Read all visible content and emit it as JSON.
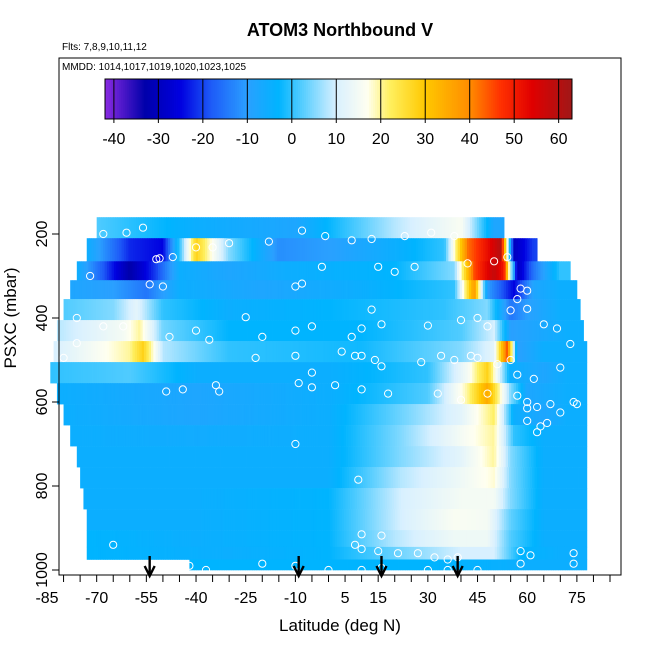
{
  "chart_data": {
    "type": "heatmap",
    "title": "ATOM3 Northbound V",
    "subtitle_flights": "Flts: 7,8,9,10,11,12",
    "subtitle_dates": "MMDD: 1014,1017,1019,1020,1023,1025",
    "xlabel": "Latitude (deg N)",
    "ylabel": "PSXC (mbar)",
    "xlim": [
      -85,
      85
    ],
    "ylim": [
      1000,
      100
    ],
    "x_ticks": [
      -85,
      -70,
      -55,
      -40,
      -25,
      -10,
      5,
      15,
      30,
      45,
      60,
      75
    ],
    "y_ticks": [
      200,
      400,
      600,
      800,
      1000
    ],
    "colorbar": {
      "min": -42,
      "max": 63,
      "ticks": [
        -40,
        -30,
        -20,
        -10,
        0,
        10,
        20,
        30,
        40,
        50,
        60
      ]
    },
    "arrow_markers_lat": [
      -54,
      -9,
      16,
      39
    ],
    "layers": [
      {
        "p_top": 160,
        "p_bot": 210,
        "lat_min": -70,
        "lat_max": 53,
        "stops": [
          [
            -70,
            2
          ],
          [
            -40,
            -5
          ],
          [
            -10,
            -8
          ],
          [
            20,
            8
          ],
          [
            40,
            16
          ],
          [
            50,
            -8
          ]
        ]
      },
      {
        "p_top": 210,
        "p_bot": 265,
        "lat_min": -73,
        "lat_max": 63,
        "stops": [
          [
            -73,
            -5
          ],
          [
            -60,
            -22
          ],
          [
            -50,
            -25
          ],
          [
            -45,
            0
          ],
          [
            -40,
            28
          ],
          [
            -30,
            5
          ],
          [
            -15,
            -12
          ],
          [
            0,
            -10
          ],
          [
            20,
            -5
          ],
          [
            35,
            0
          ],
          [
            42,
            42
          ],
          [
            48,
            52
          ],
          [
            52,
            60
          ],
          [
            56,
            -30
          ],
          [
            62,
            -20
          ]
        ]
      },
      {
        "p_top": 265,
        "p_bot": 310,
        "lat_min": -76,
        "lat_max": 73,
        "stops": [
          [
            -76,
            -5
          ],
          [
            -68,
            -18
          ],
          [
            -60,
            -33
          ],
          [
            -52,
            -20
          ],
          [
            -45,
            -5
          ],
          [
            -30,
            -8
          ],
          [
            -10,
            -5
          ],
          [
            20,
            -3
          ],
          [
            38,
            5
          ],
          [
            44,
            45
          ],
          [
            50,
            58
          ],
          [
            53,
            50
          ],
          [
            57,
            -30
          ],
          [
            62,
            -15
          ],
          [
            70,
            0
          ]
        ]
      },
      {
        "p_top": 310,
        "p_bot": 355,
        "lat_min": -78,
        "lat_max": 75,
        "stops": [
          [
            -78,
            -8
          ],
          [
            -65,
            -10
          ],
          [
            -55,
            -15
          ],
          [
            -45,
            -5
          ],
          [
            -20,
            -8
          ],
          [
            10,
            -5
          ],
          [
            38,
            0
          ],
          [
            44,
            38
          ],
          [
            48,
            -10
          ],
          [
            56,
            -25
          ],
          [
            62,
            -8
          ],
          [
            70,
            -5
          ]
        ]
      },
      {
        "p_top": 355,
        "p_bot": 405,
        "lat_min": -80,
        "lat_max": 76,
        "stops": [
          [
            -80,
            2
          ],
          [
            -65,
            5
          ],
          [
            -58,
            12
          ],
          [
            -50,
            0
          ],
          [
            -30,
            -5
          ],
          [
            0,
            -3
          ],
          [
            35,
            0
          ],
          [
            48,
            5
          ],
          [
            55,
            -15
          ],
          [
            60,
            -10
          ],
          [
            70,
            -5
          ]
        ]
      },
      {
        "p_top": 405,
        "p_bot": 455,
        "lat_min": -82,
        "lat_max": 77,
        "stops": [
          [
            -82,
            8
          ],
          [
            -62,
            15
          ],
          [
            -57,
            20
          ],
          [
            -50,
            4
          ],
          [
            -30,
            -3
          ],
          [
            10,
            -3
          ],
          [
            40,
            2
          ],
          [
            50,
            10
          ],
          [
            55,
            -10
          ],
          [
            62,
            -8
          ],
          [
            72,
            -5
          ]
        ]
      },
      {
        "p_top": 455,
        "p_bot": 505,
        "lat_min": -83,
        "lat_max": 78,
        "stops": [
          [
            -83,
            10
          ],
          [
            -60,
            20
          ],
          [
            -56,
            28
          ],
          [
            -50,
            8
          ],
          [
            -30,
            0
          ],
          [
            10,
            -2
          ],
          [
            40,
            5
          ],
          [
            50,
            12
          ],
          [
            54,
            45
          ],
          [
            57,
            -10
          ],
          [
            65,
            -5
          ],
          [
            72,
            -5
          ]
        ]
      },
      {
        "p_top": 505,
        "p_bot": 555,
        "lat_min": -84,
        "lat_max": 78,
        "stops": [
          [
            -84,
            0
          ],
          [
            -60,
            2
          ],
          [
            -40,
            -5
          ],
          [
            0,
            -5
          ],
          [
            30,
            0
          ],
          [
            42,
            15
          ],
          [
            48,
            28
          ],
          [
            55,
            -5
          ],
          [
            65,
            -8
          ],
          [
            72,
            -5
          ]
        ]
      },
      {
        "p_top": 555,
        "p_bot": 605,
        "lat_min": -82,
        "lat_max": 78,
        "stops": [
          [
            -82,
            -5
          ],
          [
            -40,
            -8
          ],
          [
            0,
            -5
          ],
          [
            30,
            2
          ],
          [
            42,
            20
          ],
          [
            48,
            35
          ],
          [
            55,
            5
          ],
          [
            60,
            -8
          ],
          [
            72,
            -5
          ]
        ]
      },
      {
        "p_top": 605,
        "p_bot": 655,
        "lat_min": -80,
        "lat_max": 78,
        "stops": [
          [
            -80,
            -5
          ],
          [
            -40,
            -8
          ],
          [
            0,
            -5
          ],
          [
            25,
            5
          ],
          [
            40,
            12
          ],
          [
            50,
            22
          ],
          [
            56,
            -5
          ],
          [
            65,
            -8
          ],
          [
            72,
            -5
          ]
        ]
      },
      {
        "p_top": 655,
        "p_bot": 705,
        "lat_min": -78,
        "lat_max": 78,
        "stops": [
          [
            -78,
            -5
          ],
          [
            -40,
            -6
          ],
          [
            0,
            -5
          ],
          [
            22,
            5
          ],
          [
            40,
            15
          ],
          [
            50,
            20
          ],
          [
            56,
            0
          ],
          [
            65,
            -5
          ],
          [
            72,
            -5
          ]
        ]
      },
      {
        "p_top": 705,
        "p_bot": 755,
        "lat_min": -76,
        "lat_max": 78,
        "stops": [
          [
            -76,
            -5
          ],
          [
            -40,
            -5
          ],
          [
            0,
            -5
          ],
          [
            22,
            5
          ],
          [
            40,
            12
          ],
          [
            50,
            20
          ],
          [
            55,
            5
          ],
          [
            65,
            -5
          ],
          [
            72,
            -5
          ]
        ]
      },
      {
        "p_top": 755,
        "p_bot": 805,
        "lat_min": -75,
        "lat_max": 78,
        "stops": [
          [
            -75,
            -5
          ],
          [
            -40,
            -5
          ],
          [
            0,
            -5
          ],
          [
            22,
            8
          ],
          [
            40,
            14
          ],
          [
            50,
            18
          ],
          [
            55,
            5
          ],
          [
            65,
            -5
          ],
          [
            72,
            -5
          ]
        ]
      },
      {
        "p_top": 805,
        "p_bot": 855,
        "lat_min": -74,
        "lat_max": 78,
        "stops": [
          [
            -74,
            -5
          ],
          [
            -40,
            -5
          ],
          [
            0,
            -3
          ],
          [
            22,
            10
          ],
          [
            40,
            15
          ],
          [
            50,
            15
          ],
          [
            55,
            5
          ],
          [
            65,
            -5
          ],
          [
            72,
            -5
          ]
        ]
      },
      {
        "p_top": 855,
        "p_bot": 905,
        "lat_min": -73,
        "lat_max": 78,
        "stops": [
          [
            -73,
            -5
          ],
          [
            -40,
            -5
          ],
          [
            0,
            -3
          ],
          [
            22,
            10
          ],
          [
            38,
            16
          ],
          [
            48,
            15
          ],
          [
            55,
            3
          ],
          [
            65,
            -5
          ],
          [
            72,
            -5
          ]
        ]
      },
      {
        "p_top": 905,
        "p_bot": 945,
        "lat_min": -73,
        "lat_max": 78,
        "stops": [
          [
            -73,
            -3
          ],
          [
            -40,
            -5
          ],
          [
            0,
            -3
          ],
          [
            20,
            8
          ],
          [
            38,
            14
          ],
          [
            48,
            14
          ],
          [
            55,
            2
          ],
          [
            65,
            -5
          ],
          [
            72,
            -5
          ]
        ]
      },
      {
        "p_top": 945,
        "p_bot": 975,
        "lat_min": -73,
        "lat_max": 78,
        "stops": [
          [
            -73,
            -3
          ],
          [
            -30,
            -5
          ],
          [
            0,
            -3
          ],
          [
            25,
            5
          ],
          [
            40,
            10
          ],
          [
            50,
            10
          ],
          [
            58,
            -3
          ],
          [
            70,
            -5
          ]
        ]
      },
      {
        "p_top": 975,
        "p_bot": 1000,
        "lat_min": -42,
        "lat_max": 78,
        "stops": [
          [
            -42,
            -3
          ],
          [
            0,
            -3
          ],
          [
            30,
            -3
          ],
          [
            60,
            -5
          ],
          [
            78,
            -5
          ]
        ]
      }
    ],
    "observation_points": [
      [
        -68,
        200
      ],
      [
        -61,
        197
      ],
      [
        -56,
        185
      ],
      [
        -52,
        260
      ],
      [
        -51,
        258
      ],
      [
        -47,
        255
      ],
      [
        -40,
        232
      ],
      [
        -35,
        232
      ],
      [
        -30,
        222
      ],
      [
        -18,
        218
      ],
      [
        -8,
        192
      ],
      [
        -1,
        205
      ],
      [
        7,
        215
      ],
      [
        13,
        212
      ],
      [
        23,
        205
      ],
      [
        31,
        197
      ],
      [
        38,
        205
      ],
      [
        -84,
        330
      ],
      [
        -72,
        300
      ],
      [
        -54,
        320
      ],
      [
        -50,
        325
      ],
      [
        -10,
        325
      ],
      [
        -8,
        318
      ],
      [
        -2,
        278
      ],
      [
        15,
        278
      ],
      [
        20,
        290
      ],
      [
        26,
        278
      ],
      [
        42,
        270
      ],
      [
        50,
        265
      ],
      [
        54,
        255
      ],
      [
        58,
        330
      ],
      [
        60,
        335
      ],
      [
        -76,
        400
      ],
      [
        -68,
        420
      ],
      [
        -62,
        420
      ],
      [
        -48,
        445
      ],
      [
        -40,
        430
      ],
      [
        -36,
        452
      ],
      [
        -25,
        398
      ],
      [
        -20,
        445
      ],
      [
        -10,
        430
      ],
      [
        -5,
        420
      ],
      [
        7,
        445
      ],
      [
        10,
        425
      ],
      [
        13,
        380
      ],
      [
        16,
        415
      ],
      [
        30,
        418
      ],
      [
        40,
        405
      ],
      [
        45,
        400
      ],
      [
        48,
        420
      ],
      [
        55,
        382
      ],
      [
        57,
        355
      ],
      [
        60,
        378
      ],
      [
        65,
        415
      ],
      [
        69,
        425
      ],
      [
        73,
        462
      ],
      [
        -80,
        495
      ],
      [
        -76,
        460
      ],
      [
        -49,
        575
      ],
      [
        -44,
        570
      ],
      [
        -34,
        560
      ],
      [
        -33,
        575
      ],
      [
        -22,
        495
      ],
      [
        -10,
        490
      ],
      [
        -5,
        530
      ],
      [
        4,
        480
      ],
      [
        8,
        490
      ],
      [
        10,
        490
      ],
      [
        14,
        500
      ],
      [
        16,
        515
      ],
      [
        28,
        505
      ],
      [
        34,
        490
      ],
      [
        38,
        500
      ],
      [
        43,
        490
      ],
      [
        45,
        495
      ],
      [
        51,
        510
      ],
      [
        55,
        500
      ],
      [
        57,
        535
      ],
      [
        62,
        545
      ],
      [
        70,
        518
      ],
      [
        -9,
        555
      ],
      [
        -5,
        565
      ],
      [
        2,
        560
      ],
      [
        10,
        570
      ],
      [
        18,
        580
      ],
      [
        33,
        580
      ],
      [
        40,
        595
      ],
      [
        48,
        580
      ],
      [
        57,
        585
      ],
      [
        60,
        600
      ],
      [
        60,
        615
      ],
      [
        63,
        612
      ],
      [
        67,
        605
      ],
      [
        70,
        625
      ],
      [
        74,
        600
      ],
      [
        75,
        605
      ],
      [
        60,
        645
      ],
      [
        64,
        658
      ],
      [
        66,
        650
      ],
      [
        63,
        672
      ],
      [
        -10,
        700
      ],
      [
        9,
        785
      ],
      [
        -83,
        945
      ],
      [
        -65,
        940
      ],
      [
        10,
        915
      ],
      [
        16,
        918
      ],
      [
        8,
        940
      ],
      [
        10,
        950
      ],
      [
        15,
        955
      ],
      [
        21,
        960
      ],
      [
        27,
        960
      ],
      [
        32,
        970
      ],
      [
        36,
        975
      ],
      [
        39,
        970
      ],
      [
        58,
        955
      ],
      [
        61,
        965
      ],
      [
        74,
        960
      ],
      [
        74,
        985
      ],
      [
        58,
        985
      ],
      [
        -42,
        990
      ],
      [
        -37,
        1000
      ],
      [
        -20,
        985
      ],
      [
        -10,
        990
      ],
      [
        0,
        1000
      ],
      [
        10,
        1000
      ],
      [
        16,
        995
      ],
      [
        30,
        1000
      ],
      [
        36,
        1000
      ],
      [
        45,
        1000
      ]
    ]
  }
}
